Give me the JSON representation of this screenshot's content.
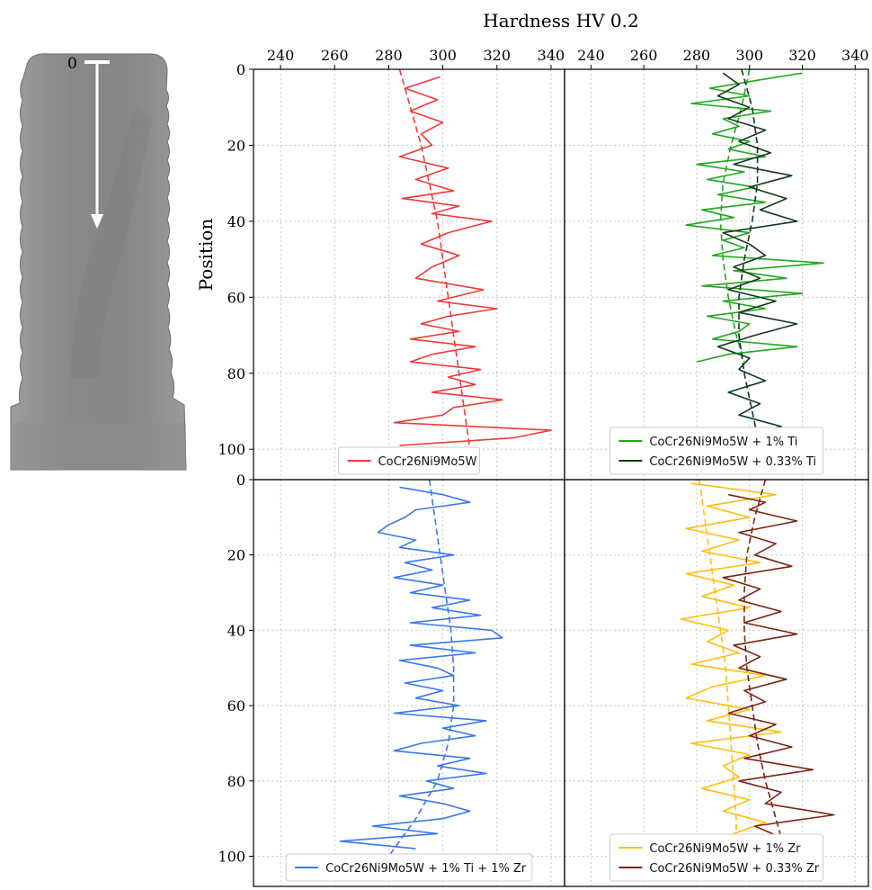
{
  "figure": {
    "x_axis_label": "Hardness HV 0.2",
    "y_axis_label": "Position",
    "image_marker": "0"
  },
  "colors": {
    "red": "#f03a3a",
    "green": "#22a722",
    "darkgreen": "#12391c",
    "blue": "#3a78f0",
    "amber": "#ffbe10",
    "brown": "#7b2414",
    "grid": "#c8c8c8"
  },
  "chart_data": [
    {
      "type": "line",
      "panel": "top-left",
      "xlim": [
        230,
        345
      ],
      "ylim": [
        0,
        108
      ],
      "y_inverted": true,
      "grid": true,
      "legend_position": "bottom-center",
      "x_ticks": [
        "240",
        "260",
        "280",
        "300",
        "320",
        "340"
      ],
      "y_ticks": [
        "0",
        "20",
        "40",
        "60",
        "80",
        "100"
      ],
      "series": [
        {
          "name": "CoCr26Ni9Mo5W",
          "color_key": "red",
          "position": [
            2,
            5,
            8,
            11,
            14,
            17,
            20,
            23,
            26,
            29,
            32,
            34,
            36,
            38,
            40,
            43,
            46,
            49,
            52,
            55,
            58,
            61,
            63,
            65,
            67,
            69,
            71,
            73,
            75,
            77,
            79,
            81,
            83,
            85,
            87,
            89,
            91,
            93,
            95,
            97,
            99
          ],
          "hardness": [
            299,
            286,
            298,
            288,
            300,
            292,
            296,
            284,
            302,
            290,
            304,
            285,
            306,
            296,
            318,
            302,
            292,
            306,
            296,
            290,
            315,
            298,
            320,
            302,
            292,
            306,
            288,
            312,
            296,
            288,
            314,
            302,
            312,
            296,
            322,
            304,
            300,
            282,
            340,
            326,
            284
          ]
        },
        {
          "name": "",
          "style": "dashed",
          "color_key": "red",
          "position": [
            0,
            10,
            20,
            30,
            40,
            50,
            60,
            70,
            80,
            90,
            100
          ],
          "hardness": [
            284,
            288,
            292,
            295,
            298,
            300,
            302,
            304,
            306,
            308,
            310
          ]
        }
      ]
    },
    {
      "type": "line",
      "panel": "top-right",
      "xlim": [
        230,
        345
      ],
      "ylim": [
        0,
        108
      ],
      "y_inverted": true,
      "grid": true,
      "legend_position": "bottom-center",
      "x_ticks": [
        "240",
        "260",
        "280",
        "300",
        "320",
        "340"
      ],
      "y_ticks": [
        "0",
        "20",
        "40",
        "60",
        "80",
        "100"
      ],
      "series": [
        {
          "name": "CoCr26Ni9Mo5W + 1% Ti",
          "color_key": "green",
          "position": [
            1,
            3,
            5,
            7,
            9,
            11,
            13,
            15,
            17,
            19,
            21,
            23,
            25,
            27,
            29,
            31,
            33,
            35,
            37,
            39,
            41,
            43,
            45,
            47,
            49,
            51,
            53,
            55,
            57,
            59,
            61,
            63,
            65,
            67,
            69,
            71,
            73,
            75,
            77
          ],
          "hardness": [
            320,
            302,
            285,
            300,
            278,
            308,
            290,
            296,
            286,
            300,
            292,
            306,
            280,
            298,
            284,
            302,
            288,
            306,
            282,
            294,
            276,
            300,
            290,
            298,
            286,
            328,
            294,
            314,
            282,
            320,
            290,
            306,
            284,
            300,
            296,
            286,
            318,
            292,
            280
          ]
        },
        {
          "name": "",
          "style": "dashed",
          "color_key": "green",
          "position": [
            0,
            10,
            20,
            30,
            40,
            50,
            60,
            70,
            77
          ],
          "hardness": [
            300,
            297,
            293,
            290,
            289,
            290,
            292,
            295,
            298
          ]
        },
        {
          "name": "CoCr26Ni9Mo5W + 0.33% Ti",
          "color_key": "darkgreen",
          "position": [
            1,
            4,
            7,
            10,
            13,
            16,
            19,
            22,
            25,
            28,
            31,
            34,
            37,
            40,
            43,
            46,
            49,
            52,
            55,
            58,
            61,
            64,
            67,
            70,
            73,
            76,
            79,
            82,
            85,
            88,
            91,
            94,
            97,
            100
          ],
          "hardness": [
            290,
            296,
            288,
            300,
            292,
            306,
            296,
            308,
            294,
            316,
            300,
            314,
            304,
            318,
            290,
            300,
            306,
            294,
            304,
            292,
            310,
            296,
            318,
            302,
            288,
            300,
            296,
            306,
            292,
            304,
            296,
            312,
            290,
            302
          ]
        },
        {
          "name": "",
          "style": "dashed",
          "color_key": "darkgreen",
          "position": [
            0,
            10,
            20,
            30,
            40,
            50,
            60,
            70,
            80,
            90,
            100
          ],
          "hardness": [
            297,
            301,
            303,
            303,
            301,
            298,
            296,
            296,
            298,
            301,
            304
          ]
        }
      ]
    },
    {
      "type": "line",
      "panel": "bottom-left",
      "xlim": [
        230,
        345
      ],
      "ylim": [
        0,
        108
      ],
      "y_inverted": true,
      "grid": true,
      "legend_position": "bottom-center",
      "x_ticks": [
        "240",
        "260",
        "280",
        "300",
        "320",
        "340"
      ],
      "y_ticks": [
        "0",
        "20",
        "40",
        "60",
        "80",
        "100"
      ],
      "series": [
        {
          "name": "CoCr26Ni9Mo5W + 1% Ti + 1% Zr",
          "color_key": "blue",
          "position": [
            2,
            4,
            6,
            8,
            10,
            12,
            14,
            16,
            18,
            20,
            22,
            24,
            26,
            28,
            30,
            32,
            34,
            36,
            38,
            40,
            42,
            44,
            46,
            48,
            50,
            52,
            54,
            56,
            58,
            60,
            62,
            64,
            66,
            68,
            70,
            72,
            74,
            76,
            78,
            80,
            82,
            84,
            86,
            88,
            90,
            92,
            94,
            96,
            98
          ],
          "hardness": [
            284,
            300,
            310,
            290,
            286,
            280,
            276,
            290,
            284,
            304,
            286,
            296,
            282,
            300,
            288,
            310,
            296,
            314,
            288,
            318,
            322,
            288,
            312,
            284,
            298,
            304,
            286,
            300,
            290,
            306,
            282,
            316,
            300,
            312,
            292,
            282,
            310,
            298,
            316,
            294,
            304,
            284,
            300,
            310,
            300,
            274,
            298,
            262,
            290
          ]
        },
        {
          "name": "",
          "style": "dashed",
          "color_key": "blue",
          "position": [
            0,
            10,
            20,
            30,
            40,
            50,
            60,
            70,
            80,
            90,
            100
          ],
          "hardness": [
            295,
            297,
            299,
            301,
            303,
            304,
            304,
            302,
            298,
            290,
            280
          ]
        }
      ]
    },
    {
      "type": "line",
      "panel": "bottom-right",
      "xlim": [
        230,
        345
      ],
      "ylim": [
        0,
        108
      ],
      "y_inverted": true,
      "grid": true,
      "legend_position": "bottom-center",
      "x_ticks": [
        "240",
        "260",
        "280",
        "300",
        "320",
        "340"
      ],
      "y_ticks": [
        "0",
        "20",
        "40",
        "60",
        "80",
        "100"
      ],
      "series": [
        {
          "name": "CoCr26Ni9Mo5W + 1% Zr",
          "color_key": "amber",
          "position": [
            1,
            4,
            7,
            10,
            13,
            16,
            19,
            22,
            25,
            28,
            31,
            34,
            37,
            40,
            43,
            46,
            49,
            52,
            55,
            58,
            61,
            64,
            67,
            70,
            73,
            76,
            79,
            82,
            85,
            88,
            91,
            94,
            97,
            100,
            103,
            106
          ],
          "hardness": [
            278,
            310,
            284,
            300,
            276,
            296,
            282,
            304,
            276,
            294,
            282,
            300,
            274,
            292,
            284,
            296,
            278,
            306,
            286,
            276,
            300,
            284,
            312,
            278,
            300,
            290,
            296,
            282,
            300,
            290,
            306,
            294,
            300,
            296,
            310,
            318
          ]
        },
        {
          "name": "",
          "style": "dashed",
          "color_key": "amber",
          "position": [
            0,
            10,
            20,
            30,
            40,
            50,
            60,
            70,
            80,
            90,
            100,
            106
          ],
          "hardness": [
            281,
            283,
            285,
            287,
            289,
            291,
            292,
            293,
            294,
            295,
            295,
            296
          ]
        },
        {
          "name": "CoCr26Ni9Mo5W + 0.33% Zr",
          "color_key": "brown",
          "position": [
            4,
            6,
            8,
            11,
            14,
            17,
            20,
            23,
            26,
            29,
            32,
            35,
            38,
            41,
            44,
            47,
            50,
            53,
            56,
            59,
            62,
            65,
            68,
            71,
            74,
            77,
            80,
            83,
            86,
            89,
            92,
            95
          ],
          "hardness": [
            292,
            306,
            300,
            318,
            296,
            310,
            302,
            316,
            290,
            304,
            296,
            312,
            298,
            318,
            294,
            304,
            296,
            314,
            298,
            306,
            292,
            310,
            300,
            316,
            298,
            324,
            296,
            312,
            306,
            332,
            302,
            312
          ]
        },
        {
          "name": "",
          "style": "dashed",
          "color_key": "brown",
          "position": [
            0,
            10,
            20,
            30,
            40,
            50,
            60,
            70,
            80,
            90,
            95
          ],
          "hardness": [
            306,
            302,
            299,
            298,
            298,
            299,
            301,
            303,
            306,
            310,
            312
          ]
        }
      ]
    }
  ]
}
